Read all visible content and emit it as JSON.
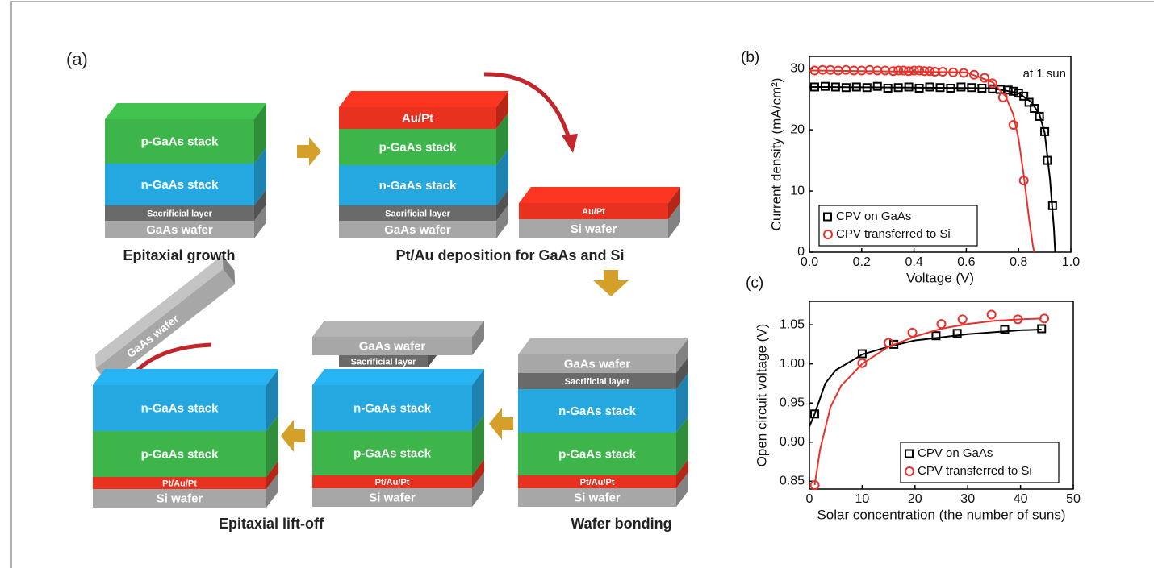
{
  "diagram": {
    "label": "(a)",
    "blocks": [
      {
        "layers": [
          {
            "text": "p-GaAs stack",
            "color": "#3db54a"
          },
          {
            "text": "n-GaAs stack",
            "color": "#25a7e0"
          },
          {
            "text": "Sacrificial layer",
            "color": "#6a6a6a"
          },
          {
            "text": "GaAs wafer",
            "color": "#a7a7a7"
          }
        ]
      },
      {
        "layers": [
          {
            "text": "Au/Pt",
            "color": "#e8311e"
          },
          {
            "text": "p-GaAs stack",
            "color": "#3db54a"
          },
          {
            "text": "n-GaAs stack",
            "color": "#25a7e0"
          },
          {
            "text": "Sacrificial layer",
            "color": "#6a6a6a"
          },
          {
            "text": "GaAs wafer",
            "color": "#a7a7a7"
          }
        ]
      },
      {
        "layers": [
          {
            "text": "Au/Pt",
            "color": "#e8311e"
          },
          {
            "text": "Si wafer",
            "color": "#a7a7a7"
          }
        ]
      },
      {
        "layers": [
          {
            "text": "n-GaAs stack",
            "color": "#25a7e0"
          },
          {
            "text": "p-GaAs stack",
            "color": "#3db54a"
          },
          {
            "text": "Pt/Au/Pt",
            "color": "#e8311e"
          },
          {
            "text": "Si wafer",
            "color": "#a7a7a7"
          }
        ]
      },
      {
        "layers": [
          {
            "text": "n-GaAs stack",
            "color": "#25a7e0"
          },
          {
            "text": "p-GaAs stack",
            "color": "#3db54a"
          },
          {
            "text": "Pt/Au/Pt",
            "color": "#e8311e"
          },
          {
            "text": "Si wafer",
            "color": "#a7a7a7"
          }
        ]
      },
      {
        "layers": [
          {
            "text": "Sacrificial layer",
            "color": "#6a6a6a"
          }
        ]
      },
      {
        "layers": [
          {
            "text": "GaAs wafer",
            "color": "#a7a7a7"
          }
        ]
      },
      {
        "layers": [
          {
            "text": "GaAs wafer",
            "color": "#a7a7a7"
          },
          {
            "text": "Sacrificial layer",
            "color": "#6a6a6a"
          },
          {
            "text": "n-GaAs stack",
            "color": "#25a7e0"
          },
          {
            "text": "p-GaAs stack",
            "color": "#3db54a"
          },
          {
            "text": "Pt/Au/Pt",
            "color": "#e8311e"
          },
          {
            "text": "Si wafer",
            "color": "#a7a7a7"
          }
        ]
      }
    ],
    "captions": [
      "Epitaxial growth",
      "Pt/Au deposition for GaAs and Si",
      "Epitaxial lift-off",
      "Wafer bonding"
    ],
    "tilted_wafer": "GaAs wafer"
  },
  "chart_data": [
    {
      "type": "scatter",
      "label": "(b)",
      "x_label": "Voltage (V)",
      "y_label": "Current density (mA/cm²)",
      "annotation": "at 1 sun",
      "xlim": [
        0,
        1
      ],
      "ylim": [
        0,
        32
      ],
      "xticks": [
        {
          "value": 0,
          "label": "0.0"
        },
        0.2,
        0.4,
        0.6,
        0.8,
        {
          "value": 1,
          "label": "1.0"
        }
      ],
      "yticks": [
        0,
        10,
        20,
        30
      ],
      "legend": "lower left",
      "series": [
        {
          "name": "CPV on GaAs",
          "color": "#000000",
          "marker": "square",
          "x": [
            0.02,
            0.06,
            0.1,
            0.14,
            0.18,
            0.22,
            0.26,
            0.3,
            0.34,
            0.38,
            0.42,
            0.46,
            0.5,
            0.54,
            0.58,
            0.62,
            0.66,
            0.7,
            0.73,
            0.76,
            0.78,
            0.8,
            0.82,
            0.84,
            0.86,
            0.88,
            0.9,
            0.91,
            0.93
          ],
          "values": [
            27.0,
            27.1,
            27.0,
            26.9,
            27.0,
            26.9,
            27.1,
            26.8,
            26.9,
            27.0,
            26.8,
            27.0,
            26.9,
            26.8,
            27.0,
            26.9,
            26.8,
            26.7,
            26.6,
            26.5,
            26.3,
            26.0,
            25.5,
            24.5,
            23.5,
            22.2,
            19.7,
            15.0,
            7.6
          ],
          "fit_x": [
            0,
            0.7,
            0.8,
            0.85,
            0.88,
            0.9,
            0.92,
            0.935,
            0.94
          ],
          "fit_values": [
            27,
            26.8,
            26.0,
            24.5,
            22.5,
            19.5,
            12,
            4,
            0
          ]
        },
        {
          "name": "CPV transferred to Si",
          "color": "#e8312b",
          "marker": "circle",
          "x": [
            0.02,
            0.05,
            0.08,
            0.11,
            0.14,
            0.17,
            0.2,
            0.23,
            0.26,
            0.29,
            0.32,
            0.34,
            0.36,
            0.38,
            0.4,
            0.42,
            0.44,
            0.46,
            0.48,
            0.51,
            0.55,
            0.59,
            0.63,
            0.67,
            0.7,
            0.74,
            0.78,
            0.82
          ],
          "values": [
            29.7,
            29.8,
            29.8,
            29.7,
            29.8,
            29.7,
            29.7,
            29.8,
            29.7,
            29.7,
            29.6,
            29.7,
            29.7,
            29.6,
            29.7,
            29.7,
            29.6,
            29.6,
            29.5,
            29.5,
            29.4,
            29.3,
            29.0,
            28.5,
            27.6,
            25.3,
            20.8,
            11.7
          ],
          "fit_x": [
            0,
            0.6,
            0.7,
            0.75,
            0.78,
            0.8,
            0.82,
            0.84,
            0.855,
            0.86
          ],
          "fit_values": [
            29.7,
            29.4,
            27.8,
            25.5,
            22.5,
            18.5,
            12.5,
            5.5,
            1,
            0
          ]
        }
      ]
    },
    {
      "type": "scatter",
      "label": "(c)",
      "x_label": "Solar concentration (the number of suns)",
      "y_label": "Open circuit voltage (V)",
      "xlim": [
        0,
        50
      ],
      "ylim": [
        0.84,
        1.08
      ],
      "xticks": [
        0,
        10,
        20,
        30,
        40,
        50
      ],
      "yticks": [
        0.85,
        {
          "value": 0.9,
          "label": "0.90"
        },
        0.95,
        {
          "value": 1,
          "label": "1.00"
        },
        1.05
      ],
      "legend": "lower right",
      "series": [
        {
          "name": "CPV on GaAs",
          "color": "#000000",
          "marker": "square",
          "x": [
            1,
            10,
            16,
            24,
            28,
            37,
            44
          ],
          "values": [
            0.936,
            1.013,
            1.025,
            1.036,
            1.039,
            1.044,
            1.045
          ],
          "fit_x": [
            0,
            1,
            3,
            5,
            10,
            15,
            20,
            30,
            40,
            44
          ],
          "fit_values": [
            0.92,
            0.936,
            0.975,
            0.992,
            1.012,
            1.022,
            1.03,
            1.038,
            1.043,
            1.044
          ]
        },
        {
          "name": "CPV transferred to Si",
          "color": "#e8312b",
          "marker": "circle",
          "x": [
            1,
            10,
            15,
            19.5,
            25,
            29,
            34.5,
            39.5,
            44.5
          ],
          "values": [
            0.845,
            1.001,
            1.027,
            1.04,
            1.051,
            1.057,
            1.063,
            1.057,
            1.058
          ],
          "fit_x": [
            1,
            2,
            4,
            6,
            10,
            15,
            20,
            25,
            30,
            35,
            40,
            44
          ],
          "fit_values": [
            0.845,
            0.89,
            0.945,
            0.972,
            1.0,
            1.022,
            1.035,
            1.045,
            1.051,
            1.055,
            1.057,
            1.058
          ]
        }
      ]
    }
  ]
}
